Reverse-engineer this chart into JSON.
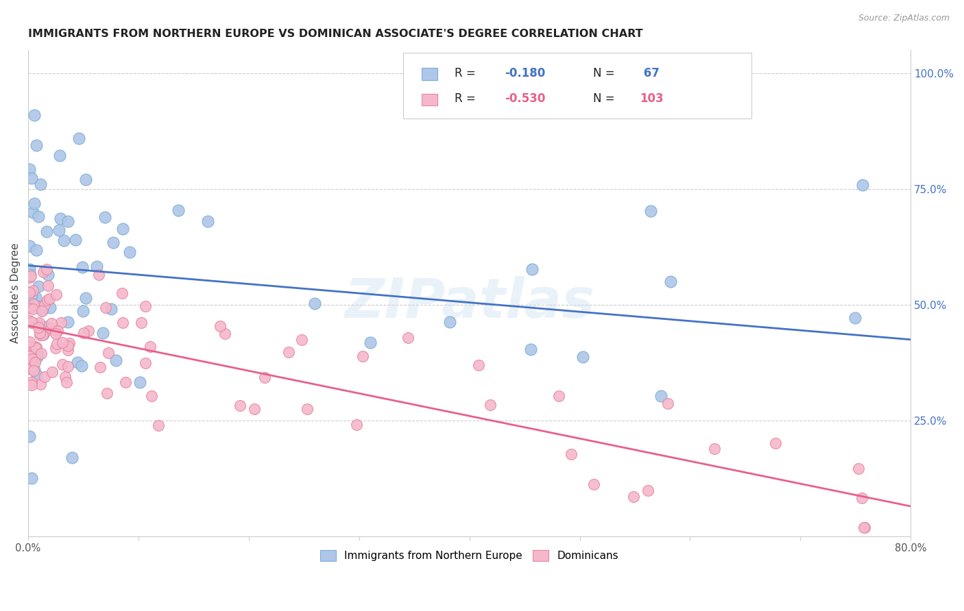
{
  "title": "IMMIGRANTS FROM NORTHERN EUROPE VS DOMINICAN ASSOCIATE'S DEGREE CORRELATION CHART",
  "source": "Source: ZipAtlas.com",
  "ylabel": "Associate's Degree",
  "right_yticks": [
    "100.0%",
    "75.0%",
    "50.0%",
    "25.0%"
  ],
  "right_ytick_vals": [
    1.0,
    0.75,
    0.5,
    0.25
  ],
  "watermark": "ZIPatlas",
  "legend_blue_label": "Immigrants from Northern Europe",
  "legend_pink_label": "Dominicans",
  "legend_R_blue": "R = ",
  "legend_val_R_blue": "-0.180",
  "legend_N_blue": "N = ",
  "legend_val_N_blue": " 67",
  "legend_R_pink": "R = ",
  "legend_val_R_pink": "-0.530",
  "legend_N_pink": "N = ",
  "legend_val_N_pink": "103",
  "blue_line_color": "#4472c4",
  "pink_line_color": "#e8608a",
  "blue_dot_facecolor": "#aec6e8",
  "blue_dot_edgecolor": "#7aadd4",
  "pink_dot_facecolor": "#f4b8cc",
  "pink_dot_edgecolor": "#e8849c",
  "background_color": "#ffffff",
  "grid_color": "#cccccc",
  "title_color": "#222222",
  "right_axis_color": "#4472c4",
  "xlim": [
    0.0,
    0.8
  ],
  "ylim": [
    0.0,
    1.05
  ],
  "blue_trend_y0": 0.585,
  "blue_trend_y1": 0.425,
  "pink_trend_y0": 0.455,
  "pink_trend_y1": 0.065,
  "xtick_show": [
    "0.0%",
    "80.0%"
  ],
  "xtick_positions_show": [
    0.0,
    0.8
  ]
}
